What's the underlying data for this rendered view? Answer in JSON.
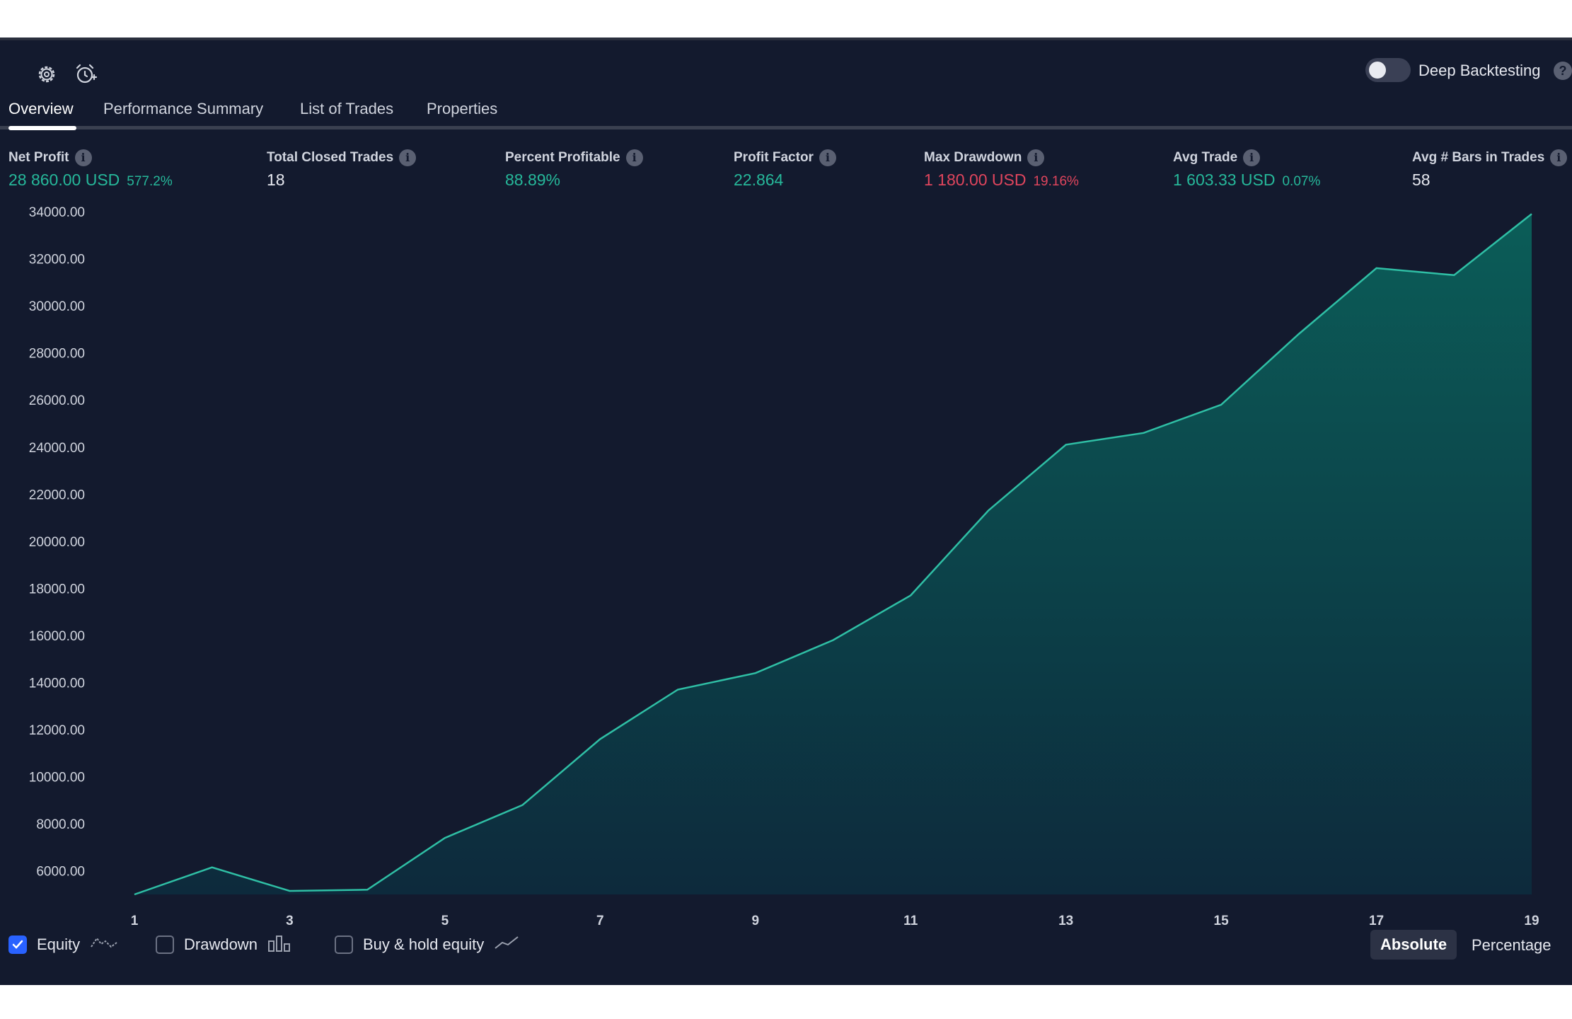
{
  "toolbar": {
    "settings_icon": "gear-icon",
    "alert_icon": "alarm-plus-icon",
    "deep_backtesting_label": "Deep Backtesting",
    "help_glyph": "?"
  },
  "tabs": [
    {
      "label": "Overview",
      "active": true
    },
    {
      "label": "Performance Summary",
      "active": false
    },
    {
      "label": "List of Trades",
      "active": false
    },
    {
      "label": "Properties",
      "active": false
    }
  ],
  "metrics": {
    "net_profit": {
      "label": "Net Profit",
      "value": "28 860.00 USD",
      "sub": "577.2%"
    },
    "total_closed_trades": {
      "label": "Total Closed Trades",
      "value": "18"
    },
    "percent_profitable": {
      "label": "Percent Profitable",
      "value": "88.89%"
    },
    "profit_factor": {
      "label": "Profit Factor",
      "value": "22.864"
    },
    "max_drawdown": {
      "label": "Max Drawdown",
      "value": "1 180.00 USD",
      "sub": "19.16%"
    },
    "avg_trade": {
      "label": "Avg Trade",
      "value": "1 603.33 USD",
      "sub": "0.07%"
    },
    "avg_bars": {
      "label": "Avg # Bars in Trades",
      "value": "58"
    }
  },
  "info_glyph": "i",
  "colors": {
    "background": "#131a2e",
    "positive": "#26b89a",
    "negative": "#e0455d",
    "equity_line": "#2fbfa5",
    "accent": "#2962ff"
  },
  "chart_data": {
    "type": "area",
    "x_ticks": [
      "1",
      "3",
      "5",
      "7",
      "9",
      "11",
      "13",
      "15",
      "17",
      "19"
    ],
    "y_ticks": [
      "34000.00",
      "32000.00",
      "30000.00",
      "28000.00",
      "26000.00",
      "24000.00",
      "22000.00",
      "20000.00",
      "18000.00",
      "16000.00",
      "14000.00",
      "12000.00",
      "10000.00",
      "8000.00",
      "6000.00"
    ],
    "ylim": [
      5000,
      34000
    ],
    "xlim": [
      1,
      19
    ],
    "series": [
      {
        "name": "Equity",
        "x": [
          1,
          2,
          3,
          4,
          5,
          6,
          7,
          8,
          9,
          10,
          11,
          12,
          13,
          14,
          15,
          16,
          17,
          18,
          19
        ],
        "y": [
          5000,
          6150,
          5150,
          5200,
          7400,
          8800,
          11600,
          13700,
          14400,
          15800,
          17700,
          21300,
          24100,
          24600,
          25800,
          28800,
          31600,
          31300,
          33900
        ]
      }
    ],
    "grid": false
  },
  "legend": {
    "equity": {
      "label": "Equity",
      "checked": true,
      "icon": "equity-line-icon"
    },
    "drawdown": {
      "label": "Drawdown",
      "checked": false,
      "icon": "bar-chart-icon"
    },
    "buy_hold": {
      "label": "Buy & hold equity",
      "checked": false,
      "icon": "trend-line-icon"
    }
  },
  "view_toggle": {
    "absolute": "Absolute",
    "percentage": "Percentage",
    "selected": "Absolute"
  }
}
